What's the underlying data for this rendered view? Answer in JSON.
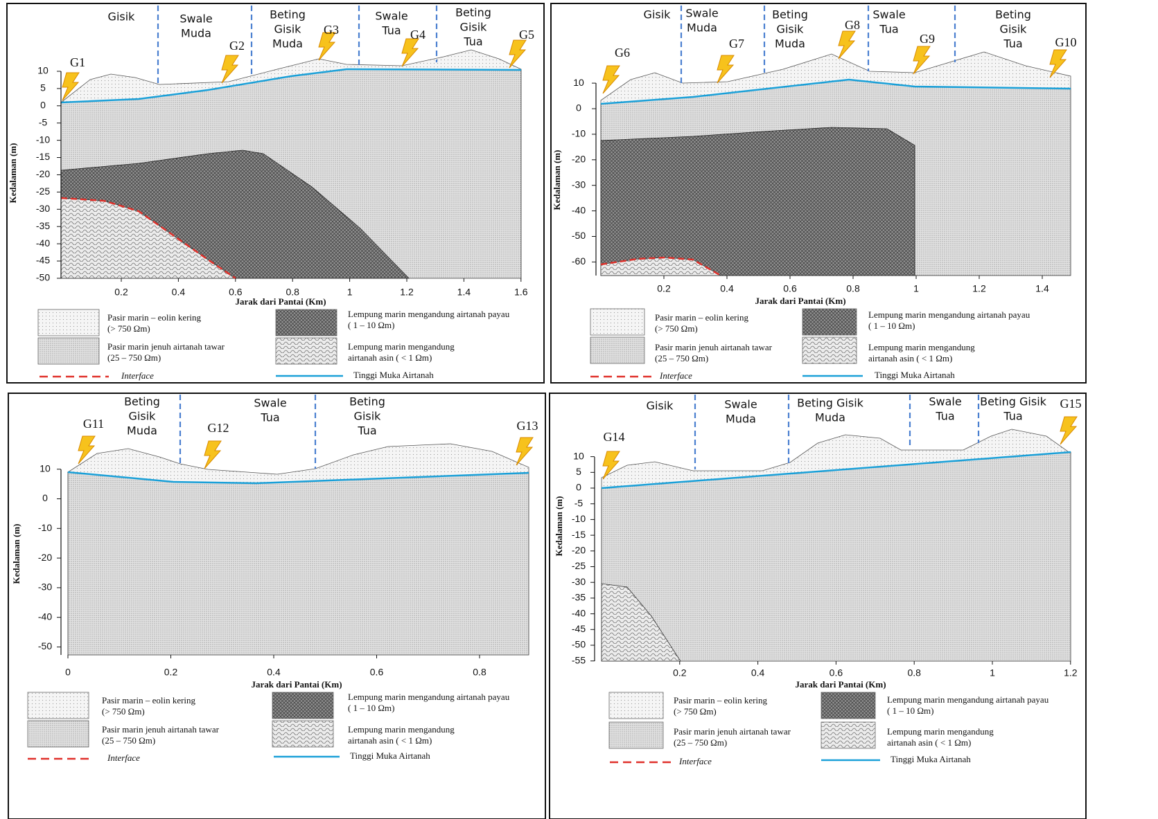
{
  "panels": [
    {
      "zones": [
        [
          "Gisik"
        ],
        [
          "Swale",
          "Muda"
        ],
        [
          "Beting",
          "Gisik",
          "Muda"
        ],
        [
          "Swale",
          "Tua"
        ],
        [
          "Beting",
          "Gisik",
          "Tua"
        ]
      ],
      "stations": [
        "G1",
        "G2",
        "G3",
        "G4",
        "G5"
      ],
      "y_label": "Kedalaman (m)",
      "x_label": "Jarak dari Pantai (Km)",
      "yticks": [
        10,
        5,
        0,
        -5,
        -10,
        -15,
        -20,
        -25,
        -30,
        -35,
        -40,
        -45,
        -50
      ],
      "xticks": [
        0.2,
        0.4,
        0.6,
        0.8,
        1,
        1.2,
        1.4,
        1.6
      ],
      "legend": {
        "items": [
          [
            "Pasir marin – eolin kering",
            "(> 750 Ωm)"
          ],
          [
            "Pasir marin jenuh airtanah tawar",
            "(25 – 750 Ωm)"
          ],
          [
            "Lempung marin mengandung airtanah payau",
            "( 1 – 10 Ωm)"
          ],
          [
            "Lempung marin mengandung",
            "airtanah asin ( < 1 Ωm)"
          ]
        ],
        "interface": "Interface",
        "water_table": "Tinggi Muka Airtanah"
      }
    },
    {
      "zones": [
        [
          "Gisik"
        ],
        [
          "Swale",
          "Muda"
        ],
        [
          "Beting",
          "Gisik",
          "Muda"
        ],
        [
          "Swale",
          "Tua"
        ],
        [
          "Beting",
          "Gisik",
          "Tua"
        ]
      ],
      "stations": [
        "G6",
        "G7",
        "G8",
        "G9",
        "G10"
      ],
      "y_label": "Kedalaman (m)",
      "x_label": "Jarak dari Pantai (Km)",
      "yticks": [
        10,
        0,
        -10,
        -20,
        -30,
        -40,
        -50,
        -60
      ],
      "xticks": [
        0.2,
        0.4,
        0.6,
        0.8,
        1,
        1.2,
        1.4
      ],
      "legend": {
        "items": [
          [
            "Pasir marin – eolin kering",
            "(> 750 Ωm)"
          ],
          [
            "Pasir marin jenuh airtanah tawar",
            "(25 – 750 Ωm)"
          ],
          [
            "Lempung marin mengandung airtanah payau",
            "( 1 – 10 Ωm)"
          ],
          [
            "Lempung marin mengandung",
            "airtanah asin ( < 1 Ωm)"
          ]
        ],
        "interface": "Interface",
        "water_table": "Tinggi Muka Airtanah"
      }
    },
    {
      "zones": [
        [
          "Beting",
          "Gisik",
          "Muda"
        ],
        [
          "Swale",
          "Tua"
        ],
        [
          "Beting",
          "Gisik",
          "Tua"
        ]
      ],
      "stations": [
        "G11",
        "G12",
        "G13"
      ],
      "y_label": "Kedalaman (m)",
      "x_label": "Jarak dari Pantai (Km)",
      "yticks": [
        10,
        0,
        -10,
        -20,
        -30,
        -40,
        -50
      ],
      "xticks": [
        0,
        0.2,
        0.4,
        0.6,
        0.8
      ],
      "legend": {
        "items": [
          [
            "Pasir marin – eolin kering",
            "(> 750 Ωm)"
          ],
          [
            "Pasir marin jenuh airtanah tawar",
            "(25 – 750 Ωm)"
          ],
          [
            "Lempung marin mengandung airtanah payau",
            "( 1 – 10 Ωm)"
          ],
          [
            "Lempung marin mengandung",
            "airtanah asin ( < 1 Ωm)"
          ]
        ],
        "interface": "Interface",
        "water_table": "Tinggi Muka Airtanah"
      }
    },
    {
      "zones": [
        [
          "Gisik"
        ],
        [
          "Swale",
          "Muda"
        ],
        [
          "Beting Gisik",
          "Muda"
        ],
        [
          "Swale",
          "Tua"
        ],
        [
          "Beting Gisik",
          "Tua"
        ]
      ],
      "stations": [
        "G14",
        "G15"
      ],
      "y_label": "Kedalaman (m)",
      "x_label": "Jarak dari Pantai (Km)",
      "yticks": [
        10,
        5,
        0,
        -5,
        -10,
        -15,
        -20,
        -25,
        -30,
        -35,
        -40,
        -45,
        -50,
        -55
      ],
      "xticks": [
        0.2,
        0.4,
        0.6,
        0.8,
        1,
        1.2
      ],
      "legend": {
        "items": [
          [
            "Pasir marin – eolin kering",
            "(> 750 Ωm)"
          ],
          [
            "Pasir marin jenuh airtanah tawar",
            "(25 – 750 Ωm)"
          ],
          [
            "Lempung marin mengandung airtanah payau",
            "( 1 – 10 Ωm)"
          ],
          [
            "Lempung marin mengandung",
            "airtanah asin ( < 1 Ωm)"
          ]
        ],
        "interface": "Interface",
        "water_table": "Tinggi Muka Airtanah"
      }
    }
  ]
}
